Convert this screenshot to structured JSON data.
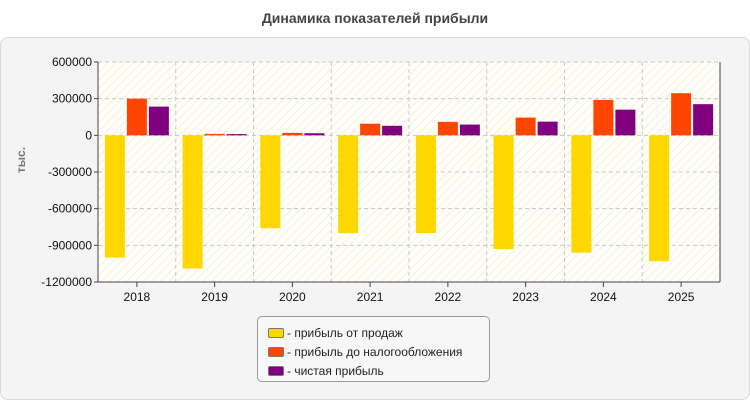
{
  "chart_data": {
    "type": "bar",
    "title": "Динамика показателей прибыли",
    "ylabel": "тыс.",
    "xlabel": "",
    "ylim": [
      -1200000,
      600000
    ],
    "yticks": [
      600000,
      300000,
      0,
      -300000,
      -600000,
      -900000,
      -1200000
    ],
    "categories": [
      "2018",
      "2019",
      "2020",
      "2021",
      "2022",
      "2023",
      "2024",
      "2025"
    ],
    "series": [
      {
        "name": "- прибыль от продаж",
        "color": "#FFD700",
        "values": [
          -1000000,
          -1090000,
          -760000,
          -800000,
          -800000,
          -930000,
          -960000,
          -1030000
        ]
      },
      {
        "name": "- прибыль до налогообложения",
        "color": "#FF4500",
        "values": [
          300000,
          12000,
          20000,
          95000,
          110000,
          145000,
          290000,
          345000
        ]
      },
      {
        "name": "- чистая прибыль",
        "color": "#800080",
        "values": [
          235000,
          10000,
          17000,
          78000,
          88000,
          112000,
          210000,
          255000
        ]
      }
    ],
    "grid": true,
    "legend_position": "bottom"
  }
}
